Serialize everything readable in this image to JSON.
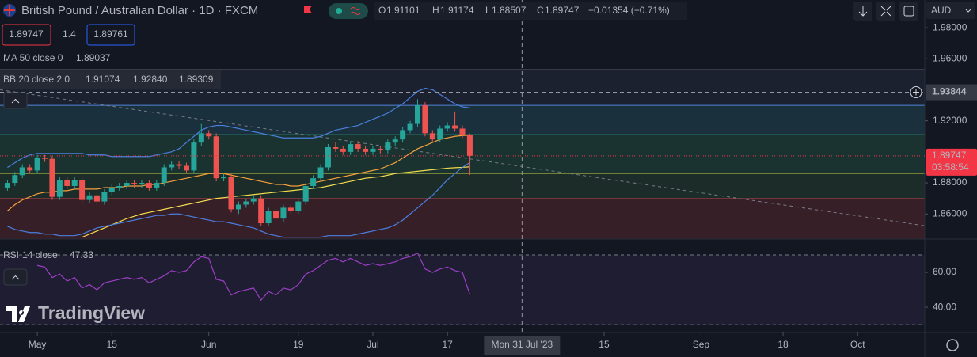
{
  "header": {
    "ohlc_keys": [
      "O",
      "H",
      "L",
      "C"
    ],
    "change": "−0.01354 (−0.71%)",
    "spread": 1.4,
    "ask": 1.89761,
    "currency": "AUD",
    "ma_legend": "MA 50 close 0",
    "bb_legend": "BB 20 close 2 0",
    "logo": "TradingView"
  },
  "chart_data": [
    {
      "type": "candlestick",
      "title": "British Pound / Australian Dollar · 1D · FXCM",
      "x": [
        "2023-04-25",
        "2023-04-26",
        "2023-04-27",
        "2023-04-28",
        "2023-05-01",
        "2023-05-02",
        "2023-05-03",
        "2023-05-04",
        "2023-05-05",
        "2023-05-08",
        "2023-05-09",
        "2023-05-10",
        "2023-05-11",
        "2023-05-12",
        "2023-05-15",
        "2023-05-16",
        "2023-05-17",
        "2023-05-18",
        "2023-05-19",
        "2023-05-22",
        "2023-05-23",
        "2023-05-24",
        "2023-05-25",
        "2023-05-26",
        "2023-05-29",
        "2023-05-30",
        "2023-05-31",
        "2023-06-01",
        "2023-06-02",
        "2023-06-05",
        "2023-06-06",
        "2023-06-07",
        "2023-06-08",
        "2023-06-09",
        "2023-06-12",
        "2023-06-13",
        "2023-06-14",
        "2023-06-15",
        "2023-06-16",
        "2023-06-19",
        "2023-06-20",
        "2023-06-21",
        "2023-06-22",
        "2023-06-23",
        "2023-06-26",
        "2023-06-27",
        "2023-06-28",
        "2023-06-29",
        "2023-06-30",
        "2023-07-03",
        "2023-07-04",
        "2023-07-05",
        "2023-07-06",
        "2023-07-07",
        "2023-07-10",
        "2023-07-11",
        "2023-07-12",
        "2023-07-13",
        "2023-07-14",
        "2023-07-17",
        "2023-07-18",
        "2023-07-19",
        "2023-07-20"
      ],
      "open": [
        1.877,
        1.88,
        1.885,
        1.89,
        1.888,
        1.896,
        1.8955,
        1.871,
        1.882,
        1.878,
        1.882,
        1.869,
        1.872,
        1.868,
        1.874,
        1.877,
        1.878,
        1.88,
        1.879,
        1.88,
        1.877,
        1.88,
        1.89,
        1.892,
        1.891,
        1.888,
        1.906,
        1.912,
        1.91,
        1.883,
        1.884,
        1.863,
        1.866,
        1.868,
        1.87,
        1.854,
        1.862,
        1.857,
        1.864,
        1.862,
        1.868,
        1.878,
        1.883,
        1.89,
        1.903,
        1.902,
        1.9,
        1.905,
        1.902,
        1.9,
        1.902,
        1.901,
        1.906,
        1.908,
        1.914,
        1.918,
        1.93,
        1.912,
        1.908,
        1.915,
        1.917,
        1.915,
        1.91101
      ],
      "high": [
        1.882,
        1.887,
        1.892,
        1.892,
        1.898,
        1.898,
        1.8975,
        1.884,
        1.884,
        1.884,
        1.884,
        1.874,
        1.874,
        1.876,
        1.879,
        1.88,
        1.882,
        1.882,
        1.882,
        1.882,
        1.882,
        1.892,
        1.894,
        1.894,
        1.893,
        1.908,
        1.918,
        1.914,
        1.912,
        1.886,
        1.886,
        1.868,
        1.87,
        1.872,
        1.872,
        1.864,
        1.864,
        1.866,
        1.866,
        1.87,
        1.88,
        1.885,
        1.892,
        1.905,
        1.906,
        1.904,
        1.907,
        1.907,
        1.904,
        1.904,
        1.904,
        1.908,
        1.91,
        1.916,
        1.92,
        1.934,
        1.932,
        1.914,
        1.917,
        1.919,
        1.926,
        1.917,
        1.91174
      ],
      "low": [
        1.875,
        1.878,
        1.883,
        1.886,
        1.886,
        1.8935,
        1.869,
        1.869,
        1.876,
        1.876,
        1.867,
        1.867,
        1.866,
        1.866,
        1.872,
        1.875,
        1.876,
        1.877,
        1.877,
        1.875,
        1.875,
        1.878,
        1.888,
        1.889,
        1.886,
        1.886,
        1.904,
        1.908,
        1.881,
        1.881,
        1.861,
        1.86,
        1.864,
        1.866,
        1.852,
        1.852,
        1.855,
        1.855,
        1.86,
        1.86,
        1.866,
        1.876,
        1.881,
        1.888,
        1.9,
        1.898,
        1.898,
        1.9,
        1.898,
        1.898,
        1.899,
        1.899,
        1.904,
        1.906,
        1.912,
        1.916,
        1.91,
        1.906,
        1.906,
        1.913,
        1.913,
        1.909,
        1.88507
      ],
      "close": [
        1.88,
        1.885,
        1.89,
        1.888,
        1.896,
        1.8955,
        1.871,
        1.882,
        1.878,
        1.882,
        1.869,
        1.872,
        1.868,
        1.874,
        1.877,
        1.878,
        1.88,
        1.879,
        1.88,
        1.877,
        1.88,
        1.89,
        1.892,
        1.891,
        1.888,
        1.906,
        1.912,
        1.91,
        1.883,
        1.884,
        1.863,
        1.866,
        1.868,
        1.87,
        1.854,
        1.862,
        1.857,
        1.864,
        1.862,
        1.868,
        1.878,
        1.883,
        1.89,
        1.903,
        1.902,
        1.9,
        1.905,
        1.902,
        1.9,
        1.902,
        1.901,
        1.906,
        1.908,
        1.914,
        1.918,
        1.93,
        1.912,
        1.908,
        1.915,
        1.917,
        1.915,
        1.91101,
        1.89747
      ],
      "up_color": "#26a69a",
      "down_color": "#ef5350",
      "countdown": "03:58:54",
      "series": [
        {
          "color": "#f0dc4e",
          "legend_value": "1.89037",
          "values": [
            null,
            null,
            null,
            null,
            null,
            null,
            null,
            null,
            null,
            null,
            1.845,
            1.847,
            1.849,
            1.851,
            1.853,
            1.855,
            1.857,
            1.8585,
            1.86,
            1.861,
            1.862,
            1.863,
            1.864,
            1.865,
            1.866,
            1.867,
            1.868,
            1.869,
            1.87,
            1.8705,
            1.871,
            1.8715,
            1.872,
            1.8725,
            1.873,
            1.8735,
            1.874,
            1.8745,
            1.875,
            1.8755,
            1.876,
            1.8765,
            1.877,
            1.878,
            1.879,
            1.88,
            1.881,
            1.882,
            1.883,
            1.8835,
            1.884,
            1.885,
            1.886,
            1.8865,
            1.887,
            1.8875,
            1.888,
            1.8885,
            1.889,
            1.8895,
            1.8898,
            1.89,
            1.89037
          ]
        },
        {
          "color": "#f59f3a",
          "legend_value": "1.91074",
          "values": [
            1.862,
            1.866,
            1.869,
            1.871,
            1.873,
            1.874,
            1.874,
            1.875,
            1.875,
            1.876,
            1.876,
            1.876,
            1.876,
            1.877,
            1.877,
            1.877,
            1.878,
            1.878,
            1.878,
            1.879,
            1.879,
            1.88,
            1.881,
            1.882,
            1.883,
            1.884,
            1.885,
            1.886,
            1.886,
            1.886,
            1.885,
            1.884,
            1.883,
            1.882,
            1.881,
            1.88,
            1.879,
            1.879,
            1.878,
            1.878,
            1.879,
            1.88,
            1.881,
            1.882,
            1.883,
            1.884,
            1.885,
            1.886,
            1.887,
            1.888,
            1.889,
            1.891,
            1.893,
            1.896,
            1.899,
            1.902,
            1.904,
            1.906,
            1.908,
            1.909,
            1.91,
            1.9105,
            1.91074
          ]
        },
        {
          "color": "#4a7fe0",
          "legend_value": "1.92840",
          "values": [
            1.89,
            1.893,
            1.896,
            1.898,
            1.899,
            1.899,
            1.899,
            1.899,
            1.899,
            1.899,
            1.899,
            1.898,
            1.898,
            1.898,
            1.897,
            1.897,
            1.897,
            1.897,
            1.897,
            1.897,
            1.898,
            1.899,
            1.9,
            1.902,
            1.906,
            1.91,
            1.914,
            1.916,
            1.917,
            1.917,
            1.916,
            1.915,
            1.914,
            1.913,
            1.912,
            1.911,
            1.91,
            1.909,
            1.909,
            1.909,
            1.909,
            1.909,
            1.91,
            1.912,
            1.914,
            1.915,
            1.916,
            1.917,
            1.919,
            1.921,
            1.923,
            1.925,
            1.928,
            1.931,
            1.935,
            1.939,
            1.941,
            1.94,
            1.937,
            1.934,
            1.931,
            1.929,
            1.9284
          ]
        },
        {
          "color": "#4a7fe0",
          "legend_value": "1.89309",
          "values": [
            1.852,
            1.85,
            1.849,
            1.848,
            1.848,
            1.847,
            1.847,
            1.846,
            1.846,
            1.846,
            1.847,
            1.849,
            1.851,
            1.852,
            1.853,
            1.854,
            1.855,
            1.856,
            1.857,
            1.858,
            1.859,
            1.859,
            1.86,
            1.86,
            1.859,
            1.858,
            1.857,
            1.856,
            1.855,
            1.855,
            1.854,
            1.853,
            1.852,
            1.851,
            1.849,
            1.847,
            1.846,
            1.845,
            1.845,
            1.845,
            1.845,
            1.845,
            1.845,
            1.846,
            1.846,
            1.846,
            1.846,
            1.847,
            1.848,
            1.849,
            1.85,
            1.851,
            1.853,
            1.856,
            1.86,
            1.864,
            1.868,
            1.872,
            1.877,
            1.882,
            1.886,
            1.89,
            1.89309
          ]
        }
      ],
      "levels": [
        {
          "value": 1.953,
          "color": "#5d606b",
          "fill": "#1b212e"
        },
        {
          "value": 1.93,
          "color": "#4f86d9",
          "fill": "#1a303c"
        },
        {
          "value": 1.9111,
          "color": "#2b8f78",
          "fill": "#1a3331"
        },
        {
          "value": 1.8861,
          "color": "#a7b43a",
          "fill": "#1c2c29"
        },
        {
          "value": 1.8698,
          "color": "#c8404b",
          "fill": "#371f28"
        }
      ],
      "trendline": {
        "x": [
          "2023-04-24",
          "2023-10-13"
        ],
        "values": [
          1.94,
          1.8524
        ]
      },
      "crosshair": {
        "x": "2023-07-31",
        "x_label": "Mon 31 Jul '23",
        "y": 1.93844
      },
      "xlim": [
        "2023-04-24",
        "2023-10-13"
      ],
      "ylim": [
        1.8438,
        1.9979
      ],
      "yticks": [
        {
          "value": 1.98,
          "label": "1.98000"
        },
        {
          "value": 1.96,
          "label": "1.96000"
        },
        {
          "value": 1.92,
          "label": "1.92000"
        },
        {
          "value": 1.88,
          "label": "1.88000"
        },
        {
          "value": 1.86,
          "label": "1.86000"
        }
      ],
      "xticks": [
        {
          "value": "2023-05-01",
          "label": "May"
        },
        {
          "value": "2023-05-15",
          "label": "15"
        },
        {
          "value": "2023-06-01",
          "label": "Jun"
        },
        {
          "value": "2023-06-19",
          "label": "19"
        },
        {
          "value": "2023-07-03",
          "label": "Jul"
        },
        {
          "value": "2023-07-17",
          "label": "17"
        },
        {
          "value": "2023-08-15",
          "label": "15"
        },
        {
          "value": "2023-09-01",
          "label": "Sep"
        },
        {
          "value": "2023-09-18",
          "label": "18"
        },
        {
          "value": "2023-10-02",
          "label": "Oct"
        }
      ],
      "grid": false
    },
    {
      "type": "line",
      "title": "RSI",
      "params": "14 close",
      "x": [
        "2023-04-25",
        "2023-04-26",
        "2023-04-27",
        "2023-04-28",
        "2023-05-01",
        "2023-05-02",
        "2023-05-03",
        "2023-05-04",
        "2023-05-05",
        "2023-05-08",
        "2023-05-09",
        "2023-05-10",
        "2023-05-11",
        "2023-05-12",
        "2023-05-15",
        "2023-05-16",
        "2023-05-17",
        "2023-05-18",
        "2023-05-19",
        "2023-05-22",
        "2023-05-23",
        "2023-05-24",
        "2023-05-25",
        "2023-05-26",
        "2023-05-29",
        "2023-05-30",
        "2023-05-31",
        "2023-06-01",
        "2023-06-02",
        "2023-06-05",
        "2023-06-06",
        "2023-06-07",
        "2023-06-08",
        "2023-06-09",
        "2023-06-12",
        "2023-06-13",
        "2023-06-14",
        "2023-06-15",
        "2023-06-16",
        "2023-06-19",
        "2023-06-20",
        "2023-06-21",
        "2023-06-22",
        "2023-06-23",
        "2023-06-26",
        "2023-06-27",
        "2023-06-28",
        "2023-06-29",
        "2023-06-30",
        "2023-07-03",
        "2023-07-04",
        "2023-07-05",
        "2023-07-06",
        "2023-07-07",
        "2023-07-10",
        "2023-07-11",
        "2023-07-12",
        "2023-07-13",
        "2023-07-14",
        "2023-07-17",
        "2023-07-18",
        "2023-07-19",
        "2023-07-20"
      ],
      "series": [
        {
          "color": "#9c3fc4",
          "values": [
            null,
            null,
            null,
            null,
            64,
            63,
            57,
            59,
            55,
            57,
            51,
            53,
            50,
            54,
            55,
            56,
            57,
            56,
            57,
            54,
            56,
            58,
            61,
            60,
            61,
            66,
            69,
            68,
            56,
            55,
            47,
            49,
            50,
            51,
            44,
            49,
            47,
            51,
            50,
            53,
            59,
            61,
            64,
            67,
            68,
            66,
            68,
            66,
            64,
            65,
            64,
            65,
            66,
            68,
            69,
            71,
            62,
            60,
            62,
            63,
            61,
            60,
            47.33
          ]
        }
      ],
      "band_lines": [
        70,
        30
      ],
      "xlim": [
        "2023-04-24",
        "2023-10-13"
      ],
      "ylim": [
        25.5,
        79.1
      ],
      "yticks": [
        {
          "value": 60,
          "label": "60.00"
        },
        {
          "value": 40,
          "label": "40.00"
        }
      ]
    }
  ]
}
